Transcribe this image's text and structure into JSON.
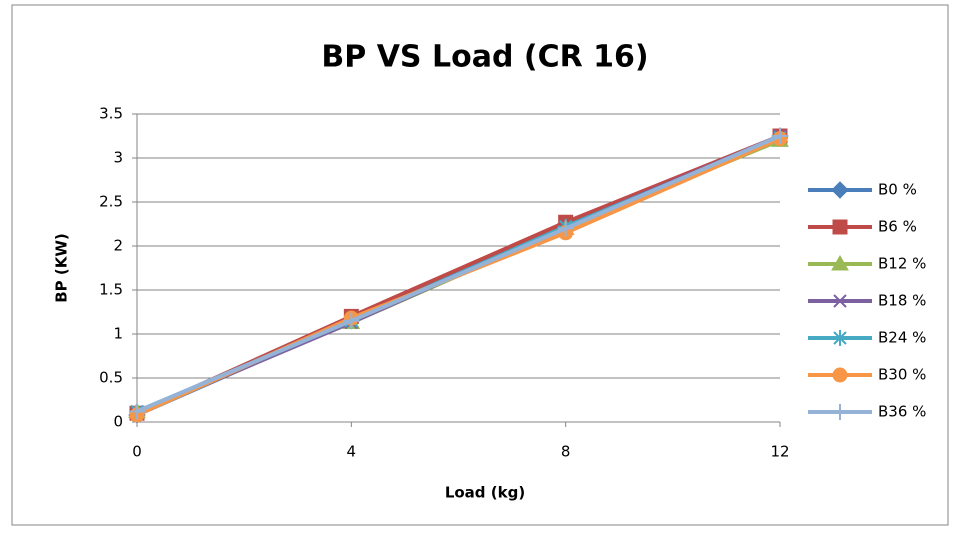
{
  "chart_data": {
    "type": "line",
    "title": "BP VS Load (CR 16)",
    "x_label": "Load (kg)",
    "y_label": "BP (KW)",
    "x": [
      0,
      4,
      8,
      12
    ],
    "xlim": [
      0,
      12
    ],
    "xticks": [
      0,
      4,
      8,
      12
    ],
    "ylim": [
      0,
      3.5
    ],
    "yticks": [
      0,
      0.5,
      1,
      1.5,
      2,
      2.5,
      3,
      3.5
    ],
    "grid": true,
    "legend": "right",
    "series": [
      {
        "name": "B0 %",
        "color": "#4a7ebb",
        "marker": "diamond",
        "values": [
          0.08,
          1.15,
          2.25,
          3.25
        ]
      },
      {
        "name": "B6 %",
        "color": "#be4b48",
        "marker": "square",
        "values": [
          0.1,
          1.2,
          2.27,
          3.25
        ]
      },
      {
        "name": "B12 %",
        "color": "#98b954",
        "marker": "triangle",
        "values": [
          0.12,
          1.13,
          2.2,
          3.2
        ]
      },
      {
        "name": "B18 %",
        "color": "#7d60a0",
        "marker": "x",
        "values": [
          0.1,
          1.13,
          2.22,
          3.25
        ]
      },
      {
        "name": "B24 %",
        "color": "#46aac5",
        "marker": "star",
        "values": [
          0.12,
          1.15,
          2.22,
          3.23
        ]
      },
      {
        "name": "B30 %",
        "color": "#f79646",
        "marker": "circle",
        "values": [
          0.08,
          1.18,
          2.15,
          3.22
        ]
      },
      {
        "name": "B36 %",
        "color": "#95b3d7",
        "marker": "plus",
        "values": [
          0.12,
          1.15,
          2.2,
          3.25
        ]
      }
    ]
  }
}
